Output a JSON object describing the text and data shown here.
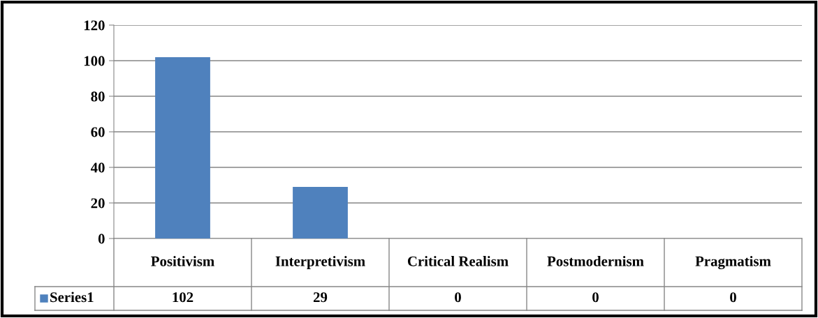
{
  "chart_data": {
    "type": "bar",
    "categories": [
      "Positivism",
      "Interpretivism",
      "Critical Realism",
      "Postmodernism",
      "Pragmatism"
    ],
    "series": [
      {
        "name": "Series1",
        "color": "#4f81bd",
        "values": [
          102,
          29,
          0,
          0,
          0
        ]
      }
    ],
    "ylim": [
      0,
      120
    ],
    "yticks": [
      0,
      20,
      40,
      60,
      80,
      100,
      120
    ],
    "grid": "y",
    "data_labels": true,
    "legend": "bottom"
  }
}
